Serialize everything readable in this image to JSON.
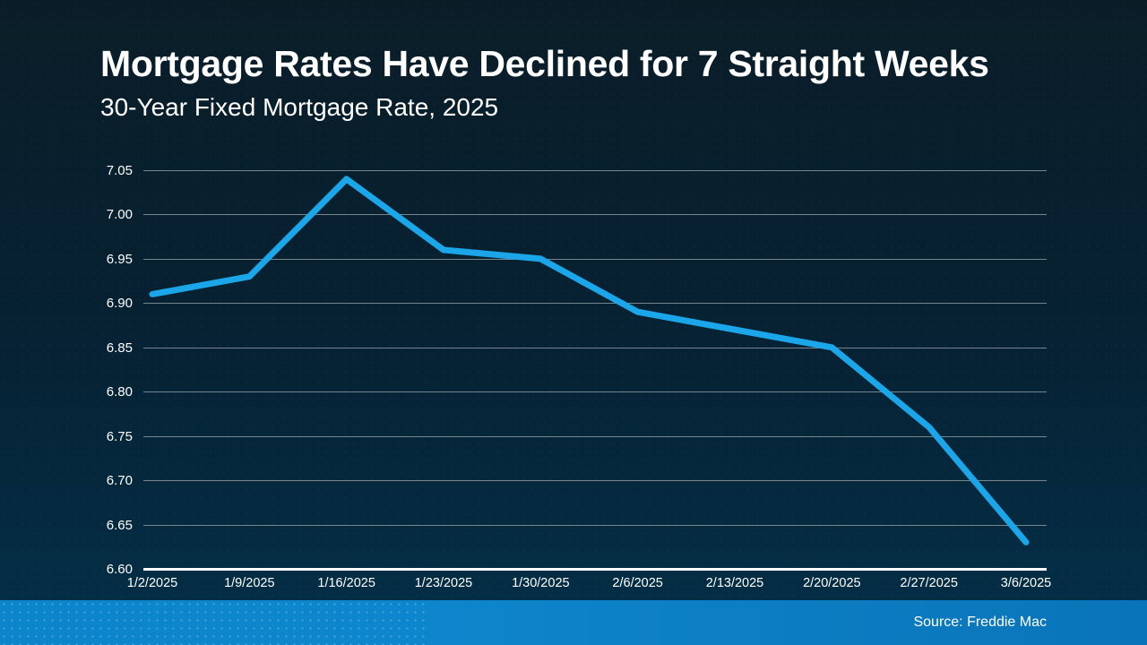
{
  "slide": {
    "title": "Mortgage Rates Have Declined for 7 Straight Weeks",
    "subtitle": "30-Year Fixed Mortgage Rate, 2025",
    "source": "Source: Freddie Mac"
  },
  "colors": {
    "line": "#1aa6e8",
    "background_top": "#0a1d27",
    "background_bottom": "#043049",
    "footer_left": "#0d85cb",
    "footer_right": "#0a74b8",
    "gridline": "#79858d",
    "axis": "#ffffff",
    "text": "#ffffff"
  },
  "chart_data": {
    "type": "line",
    "title": "Mortgage Rates Have Declined for 7 Straight Weeks",
    "subtitle": "30-Year Fixed Mortgage Rate, 2025",
    "x": [
      "1/2/2025",
      "1/9/2025",
      "1/16/2025",
      "1/23/2025",
      "1/30/2025",
      "2/6/2025",
      "2/13/2025",
      "2/20/2025",
      "2/27/2025",
      "3/6/2025"
    ],
    "series": [
      {
        "name": "30-Year Fixed Mortgage Rate",
        "values": [
          6.91,
          6.93,
          7.04,
          6.96,
          6.95,
          6.89,
          6.87,
          6.85,
          6.76,
          6.63
        ]
      }
    ],
    "ylim": [
      6.6,
      7.05
    ],
    "ytick_step": 0.05,
    "ytick_labels": [
      "7.05",
      "7.00",
      "6.95",
      "6.90",
      "6.85",
      "6.80",
      "6.75",
      "6.70",
      "6.65",
      "6.60"
    ],
    "grid": true,
    "legend": false,
    "source": "Source: Freddie Mac"
  }
}
